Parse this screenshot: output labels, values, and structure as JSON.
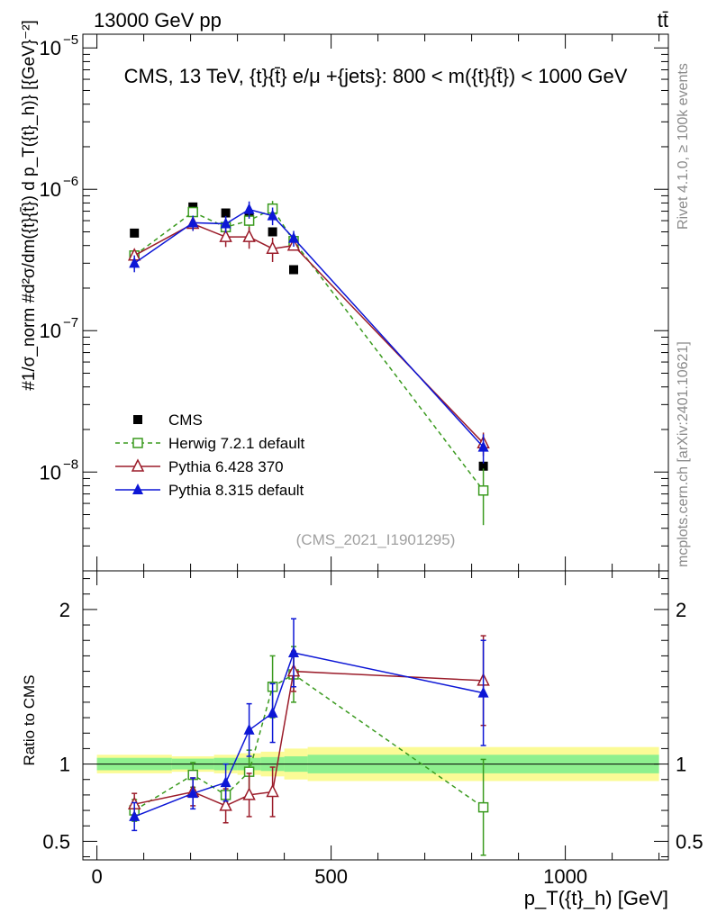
{
  "header": {
    "energy": "13000 GeV pp",
    "process": "tt̄"
  },
  "side_labels": {
    "rivet": "Rivet 4.1.0, ≥ 100k events",
    "mcplots": "mcplots.cern.ch [arXiv:2401.10621]"
  },
  "chart_data": {
    "type": "line",
    "title": "CMS, 13 TeV, {t}{t̄} e/μ +{jets}: 800 < m({t}{t̄}) < 1000 GeV",
    "watermark": "(CMS_2021_I1901295)",
    "ylabel_main": "#1/σ_norm #d²σ/dm({t}{t̄}) d p_T({t}_h)} [{GeV}⁻²]",
    "ylabel_ratio": "Ratio to CMS",
    "xlabel": "p_T({t}_h) [GeV]",
    "xlim": [
      -30,
      1220
    ],
    "ylim_main": [
      2e-09,
      1.25e-05
    ],
    "ylim_ratio": [
      0.38,
      2.25
    ],
    "x_ticks": [
      0,
      500,
      1000
    ],
    "x_tick_labels": [
      "0",
      "500",
      "1000"
    ],
    "y_ticks_main": [
      1e-08,
      1e-07,
      1e-06,
      1e-05
    ],
    "y_tick_labels_main": [
      "10",
      "10",
      "10",
      "10"
    ],
    "y_tick_exponents_main": [
      "−8",
      "−7",
      "−6",
      "−5"
    ],
    "y_ticks_ratio": [
      0.5,
      1,
      2
    ],
    "y_tick_labels_ratio": [
      "0.5",
      "1",
      "2"
    ],
    "x": [
      80,
      205,
      275,
      325,
      375,
      420,
      825
    ],
    "bin_edges": [
      0,
      160,
      250,
      300,
      350,
      400,
      450,
      1200
    ],
    "series": [
      {
        "name": "CMS",
        "marker": "filled-square",
        "color": "#000000",
        "values": [
          4.9e-07,
          7.5e-07,
          6.8e-07,
          6.3e-07,
          5e-07,
          2.7e-07,
          1.1e-08
        ]
      },
      {
        "name": "Herwig 7.2.1 default",
        "marker": "open-square",
        "color": "#3a9a1e",
        "dashed": true,
        "values": [
          3.4e-07,
          6.9e-07,
          5.4e-07,
          6e-07,
          7.3e-07,
          4.3e-07,
          7.4e-09
        ],
        "ratio": [
          0.7,
          0.93,
          0.8,
          0.95,
          1.5,
          1.58,
          0.72
        ],
        "ratio_err": [
          0.07,
          0.08,
          0.08,
          0.14,
          0.2,
          0.18,
          0.31
        ]
      },
      {
        "name": "Pythia 6.428 370",
        "marker": "open-triangle",
        "color": "#9b1c2a",
        "values": [
          3.4e-07,
          5.7e-07,
          4.6e-07,
          4.6e-07,
          3.8e-07,
          4e-07,
          1.6e-08
        ],
        "ratio": [
          0.74,
          0.82,
          0.73,
          0.8,
          0.82,
          1.6,
          1.54
        ],
        "ratio_err": [
          0.07,
          0.09,
          0.11,
          0.14,
          0.16,
          0.13,
          0.29
        ]
      },
      {
        "name": "Pythia 8.315 default",
        "marker": "filled-triangle",
        "color": "#0d17d6",
        "values": [
          3e-07,
          5.8e-07,
          5.7e-07,
          7.2e-07,
          6.5e-07,
          4.5e-07,
          1.5e-08
        ],
        "ratio": [
          0.66,
          0.81,
          0.88,
          1.22,
          1.33,
          1.72,
          1.46
        ],
        "ratio_err": [
          0.09,
          0.1,
          0.12,
          0.17,
          0.19,
          0.22,
          0.34
        ]
      }
    ],
    "uncertainty_band": {
      "stat_halfwidth": [
        0.04,
        0.035,
        0.04,
        0.04,
        0.045,
        0.05,
        0.06
      ],
      "total_halfwidth": [
        0.06,
        0.05,
        0.06,
        0.07,
        0.08,
        0.1,
        0.11
      ]
    }
  }
}
